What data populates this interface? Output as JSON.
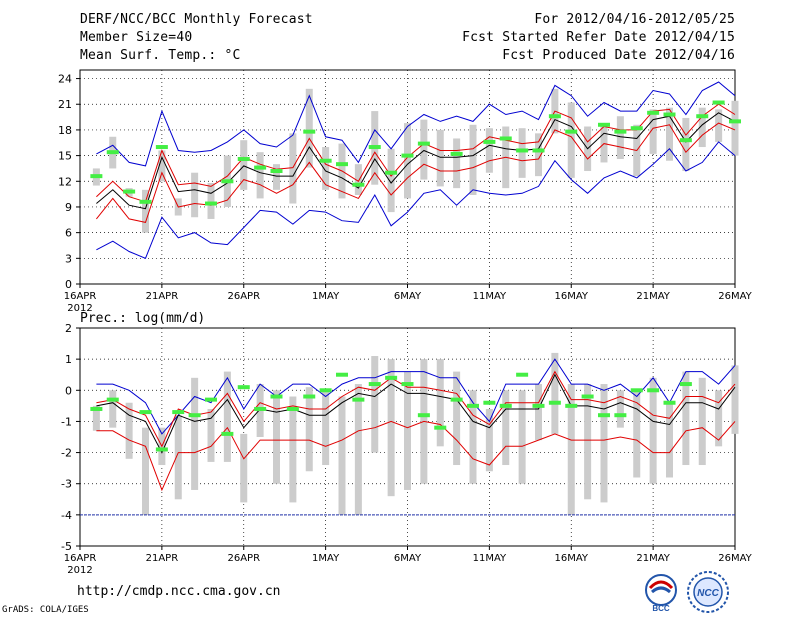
{
  "header": {
    "title": "DERF/NCC/BCC Monthly Forecast",
    "member_size": "Member Size=40",
    "variable": "Mean Surf. Temp.: °C",
    "forecast_period": "For 2012/04/16-2012/05/25",
    "start_date": "Fcst Started Refer Date 2012/04/15",
    "produced_date": "Fcst Produced Date 2012/04/16"
  },
  "footer": {
    "url": "http://cmdp.ncc.cma.gov.cn",
    "credit": "GrADS: COLA/IGES",
    "logo_bcc": "BCC",
    "logo_ncc": "NCC"
  },
  "colors": {
    "mean": "#000000",
    "spread": "#e00000",
    "extreme": "#0000d0",
    "box": "#cccccc",
    "obs": "#44ee44",
    "grid": "#000000"
  },
  "chart_data": [
    {
      "type": "line",
      "title": "Mean Surf. Temp.: °C",
      "ylim": [
        0,
        25
      ],
      "yticks": [
        0,
        3,
        6,
        9,
        12,
        15,
        18,
        21,
        24
      ],
      "xticks": [
        {
          "day": 0,
          "label": "16APR"
        },
        {
          "day": 5,
          "label": "21APR"
        },
        {
          "day": 10,
          "label": "26APR"
        },
        {
          "day": 15,
          "label": "1MAY"
        },
        {
          "day": 20,
          "label": "6MAY"
        },
        {
          "day": 25,
          "label": "11MAY"
        },
        {
          "day": 30,
          "label": "16MAY"
        },
        {
          "day": 35,
          "label": "21MAY"
        },
        {
          "day": 40,
          "label": "26MAY"
        }
      ],
      "year_label": "2012",
      "days": [
        1,
        2,
        3,
        4,
        5,
        6,
        7,
        8,
        9,
        10,
        11,
        12,
        13,
        14,
        15,
        16,
        17,
        18,
        19,
        20,
        21,
        22,
        23,
        24,
        25,
        26,
        27,
        28,
        29,
        30,
        31,
        32,
        33,
        34,
        35,
        36,
        37,
        38,
        39,
        40
      ],
      "series": [
        {
          "name": "max",
          "values": [
            15.2,
            16.2,
            14.2,
            13.8,
            20.2,
            15.6,
            15.4,
            15.6,
            16.6,
            18.0,
            16.4,
            16.0,
            17.4,
            22.0,
            17.2,
            16.8,
            14.2,
            18.0,
            15.8,
            18.4,
            19.8,
            19.0,
            19.6,
            19.0,
            21.0,
            19.8,
            20.2,
            19.2,
            23.2,
            22.0,
            19.6,
            21.2,
            20.2,
            20.2,
            22.6,
            22.2,
            19.8,
            22.6,
            23.6,
            22.0
          ]
        },
        {
          "name": "upper",
          "values": [
            10.2,
            12.0,
            10.2,
            9.6,
            15.6,
            11.6,
            11.8,
            11.4,
            12.6,
            14.8,
            14.0,
            13.4,
            13.6,
            17.0,
            14.0,
            13.2,
            12.0,
            15.4,
            12.6,
            14.8,
            16.4,
            15.6,
            15.6,
            15.8,
            17.2,
            16.8,
            16.4,
            16.6,
            20.2,
            19.4,
            16.6,
            18.4,
            18.0,
            18.0,
            20.2,
            20.4,
            17.4,
            19.6,
            21.0,
            19.8
          ]
        },
        {
          "name": "mean",
          "values": [
            9.4,
            11.0,
            9.2,
            8.8,
            14.8,
            10.8,
            11.0,
            10.6,
            11.8,
            13.8,
            13.0,
            12.6,
            12.6,
            16.0,
            13.2,
            12.4,
            11.2,
            14.6,
            11.8,
            14.0,
            15.6,
            14.8,
            14.8,
            15.0,
            16.2,
            15.8,
            15.6,
            15.8,
            19.2,
            18.4,
            15.8,
            17.6,
            17.2,
            17.0,
            19.2,
            19.6,
            16.6,
            18.6,
            20.0,
            19.0
          ]
        },
        {
          "name": "lower",
          "values": [
            7.6,
            10.0,
            7.6,
            7.2,
            13.0,
            9.0,
            9.4,
            9.2,
            9.8,
            12.2,
            11.6,
            10.6,
            11.6,
            14.2,
            11.6,
            10.8,
            10.0,
            13.0,
            10.4,
            12.4,
            14.0,
            13.2,
            13.2,
            13.6,
            14.4,
            14.8,
            14.4,
            14.6,
            18.0,
            17.2,
            14.6,
            16.4,
            16.0,
            15.6,
            18.2,
            18.6,
            15.4,
            17.4,
            18.8,
            18.0
          ]
        },
        {
          "name": "min",
          "values": [
            4.0,
            5.0,
            3.8,
            3.0,
            7.8,
            5.4,
            6.0,
            4.8,
            4.6,
            6.6,
            8.6,
            8.4,
            7.0,
            8.6,
            8.4,
            7.4,
            7.2,
            10.4,
            6.8,
            8.4,
            10.6,
            11.0,
            9.2,
            11.0,
            10.6,
            10.4,
            10.6,
            11.4,
            14.4,
            12.2,
            10.6,
            12.4,
            13.2,
            12.4,
            14.0,
            15.8,
            13.2,
            14.2,
            16.6,
            15.0
          ]
        }
      ],
      "boxes": [
        [
          11.5,
          13.5
        ],
        [
          13.5,
          17.2
        ],
        [
          10.2,
          11.2
        ],
        [
          6.0,
          11.0
        ],
        [
          12.0,
          15.6
        ],
        [
          8.0,
          10.0
        ],
        [
          7.8,
          13.0
        ],
        [
          7.6,
          11.8
        ],
        [
          9.0,
          15.0
        ],
        [
          11.0,
          16.8
        ],
        [
          10.0,
          15.4
        ],
        [
          11.0,
          14.0
        ],
        [
          9.4,
          17.6
        ],
        [
          13.6,
          22.8
        ],
        [
          11.0,
          16.0
        ],
        [
          10.0,
          16.4
        ],
        [
          10.4,
          14.0
        ],
        [
          11.6,
          20.2
        ],
        [
          8.4,
          15.8
        ],
        [
          10.0,
          18.8
        ],
        [
          12.2,
          19.2
        ],
        [
          11.4,
          18.0
        ],
        [
          11.2,
          17.0
        ],
        [
          10.4,
          18.6
        ],
        [
          13.0,
          18.2
        ],
        [
          11.2,
          18.4
        ],
        [
          12.4,
          18.2
        ],
        [
          12.6,
          17.6
        ],
        [
          17.6,
          22.8
        ],
        [
          12.4,
          21.2
        ],
        [
          13.2,
          18.4
        ],
        [
          14.2,
          18.6
        ],
        [
          14.6,
          19.6
        ],
        [
          12.6,
          18.6
        ],
        [
          15.2,
          20.4
        ],
        [
          14.4,
          20.6
        ],
        [
          13.2,
          19.4
        ],
        [
          16.0,
          20.6
        ],
        [
          16.6,
          20.4
        ],
        [
          15.0,
          21.4
        ]
      ],
      "observed": [
        12.6,
        15.4,
        10.8,
        9.6,
        16.0,
        null,
        null,
        9.4,
        12.0,
        14.6,
        13.6,
        13.2,
        null,
        17.8,
        14.4,
        14.0,
        11.6,
        16.0,
        13.0,
        15.0,
        16.4,
        null,
        15.2,
        null,
        16.6,
        17.0,
        15.6,
        15.6,
        19.6,
        17.8,
        null,
        18.6,
        17.8,
        18.2,
        20.0,
        19.8,
        16.8,
        19.6,
        21.2,
        19.0
      ]
    },
    {
      "type": "line",
      "title": "Prec.: log(mm/d)",
      "ylim": [
        -5,
        2
      ],
      "yticks": [
        -5,
        -4,
        -3,
        -2,
        -1,
        0,
        1,
        2
      ],
      "xticks": [
        {
          "day": 0,
          "label": "16APR"
        },
        {
          "day": 5,
          "label": "21APR"
        },
        {
          "day": 10,
          "label": "26APR"
        },
        {
          "day": 15,
          "label": "1MAY"
        },
        {
          "day": 20,
          "label": "6MAY"
        },
        {
          "day": 25,
          "label": "11MAY"
        },
        {
          "day": 30,
          "label": "16MAY"
        },
        {
          "day": 35,
          "label": "21MAY"
        },
        {
          "day": 40,
          "label": "26MAY"
        }
      ],
      "year_label": "2012",
      "reference_line": -4,
      "days": [
        1,
        2,
        3,
        4,
        5,
        6,
        7,
        8,
        9,
        10,
        11,
        12,
        13,
        14,
        15,
        16,
        17,
        18,
        19,
        20,
        21,
        22,
        23,
        24,
        25,
        26,
        27,
        28,
        29,
        30,
        31,
        32,
        33,
        34,
        35,
        36,
        37,
        38,
        39,
        40
      ],
      "series": [
        {
          "name": "max",
          "values": [
            0.2,
            0.2,
            0.0,
            -0.4,
            -1.4,
            -0.8,
            -0.2,
            -0.4,
            0.4,
            -0.6,
            0.2,
            -0.2,
            0.2,
            0.2,
            -0.2,
            0.2,
            0.4,
            0.4,
            0.6,
            0.6,
            0.6,
            0.4,
            0.4,
            -0.4,
            -1.0,
            0.2,
            0.2,
            0.2,
            1.0,
            0.2,
            0.2,
            0.0,
            0.2,
            -0.2,
            0.4,
            -0.4,
            0.6,
            0.6,
            0.2,
            0.8
          ]
        },
        {
          "name": "upper",
          "values": [
            -0.4,
            -0.3,
            -0.6,
            -0.8,
            -1.8,
            -0.6,
            -0.8,
            -0.7,
            -0.1,
            -1.0,
            -0.4,
            -0.6,
            -0.5,
            -0.6,
            -0.6,
            -0.2,
            0.1,
            0.0,
            0.4,
            0.1,
            0.1,
            0.0,
            -0.1,
            -0.8,
            -1.1,
            -0.4,
            -0.4,
            -0.4,
            0.6,
            -0.3,
            -0.3,
            -0.4,
            -0.2,
            -0.4,
            -0.8,
            -0.9,
            -0.2,
            -0.2,
            -0.4,
            0.2
          ]
        },
        {
          "name": "mean",
          "values": [
            -0.5,
            -0.4,
            -0.8,
            -1.0,
            -2.0,
            -0.8,
            -1.0,
            -0.9,
            -0.3,
            -1.2,
            -0.6,
            -0.7,
            -0.6,
            -0.8,
            -0.8,
            -0.4,
            -0.1,
            -0.2,
            0.2,
            -0.1,
            -0.1,
            -0.2,
            -0.3,
            -1.0,
            -1.2,
            -0.6,
            -0.6,
            -0.6,
            0.5,
            -0.5,
            -0.5,
            -0.6,
            -0.4,
            -0.6,
            -1.0,
            -1.1,
            -0.4,
            -0.4,
            -0.6,
            0.1
          ]
        },
        {
          "name": "lower",
          "values": [
            -1.3,
            -1.3,
            -1.6,
            -1.8,
            -3.2,
            -2.0,
            -2.0,
            -1.8,
            -1.2,
            -2.2,
            -1.6,
            -1.6,
            -1.6,
            -1.6,
            -1.8,
            -1.6,
            -1.3,
            -1.2,
            -1.0,
            -1.2,
            -1.0,
            -1.1,
            -1.6,
            -2.2,
            -2.4,
            -1.8,
            -1.8,
            -1.6,
            -1.4,
            -1.6,
            -1.6,
            -1.6,
            -1.5,
            -1.6,
            -2.0,
            -2.0,
            -1.3,
            -1.2,
            -1.6,
            -1.0
          ]
        }
      ],
      "boxes": [
        [
          -1.3,
          -0.5
        ],
        [
          -1.2,
          0.0
        ],
        [
          -2.2,
          -0.4
        ],
        [
          -4.0,
          -1.2
        ],
        [
          -2.4,
          -1.2
        ],
        [
          -3.5,
          -0.8
        ],
        [
          -3.2,
          0.4
        ],
        [
          -2.3,
          -0.6
        ],
        [
          -2.3,
          0.6
        ],
        [
          -3.6,
          -1.4
        ],
        [
          -1.5,
          0.2
        ],
        [
          -3.0,
          0.0
        ],
        [
          -3.6,
          -0.2
        ],
        [
          -2.6,
          0.1
        ],
        [
          -2.4,
          0.0
        ],
        [
          -4.0,
          -0.2
        ],
        [
          -4.0,
          0.2
        ],
        [
          -2.0,
          1.1
        ],
        [
          -3.4,
          1.0
        ],
        [
          -3.2,
          0.6
        ],
        [
          -3.0,
          1.0
        ],
        [
          -1.8,
          1.0
        ],
        [
          -2.4,
          0.6
        ],
        [
          -3.0,
          0.0
        ],
        [
          -2.6,
          -0.6
        ],
        [
          -2.4,
          0.0
        ],
        [
          -3.0,
          0.0
        ],
        [
          -1.6,
          0.2
        ],
        [
          -1.4,
          1.2
        ],
        [
          -4.0,
          0.2
        ],
        [
          -3.5,
          0.2
        ],
        [
          -3.6,
          0.2
        ],
        [
          -1.2,
          0.0
        ],
        [
          -2.8,
          0.0
        ],
        [
          -3.0,
          0.4
        ],
        [
          -2.8,
          -0.4
        ],
        [
          -2.4,
          0.6
        ],
        [
          -2.4,
          0.4
        ],
        [
          -1.8,
          0.0
        ],
        [
          -1.4,
          0.8
        ]
      ],
      "observed": [
        -0.6,
        -0.3,
        null,
        -0.7,
        -1.9,
        -0.7,
        -0.8,
        -0.3,
        -1.4,
        0.1,
        -0.6,
        -0.2,
        -0.6,
        -0.2,
        0.0,
        0.5,
        -0.3,
        0.2,
        0.4,
        0.2,
        -0.8,
        -1.2,
        -0.3,
        -0.5,
        -0.4,
        -0.5,
        0.5,
        -0.5,
        -0.4,
        -0.5,
        -0.2,
        -0.8,
        -0.8,
        0.0,
        0.0,
        -0.4,
        0.2,
        null,
        null,
        null
      ]
    }
  ]
}
